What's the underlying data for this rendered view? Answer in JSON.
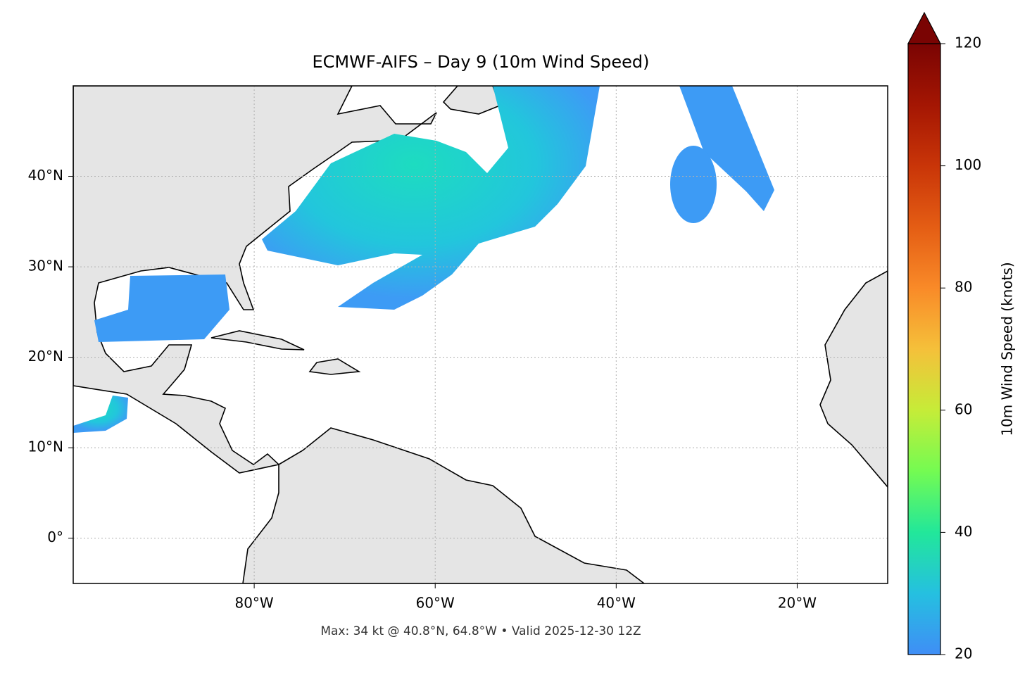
{
  "chart_data": {
    "type": "map",
    "title": "ECMWF-AIFS – Day 9 (10m Wind Speed)",
    "footnote": "Max: 34 kt @ 40.8°N, 64.8°W • Valid 2025-12-30 12Z",
    "xlim": [
      -100,
      -10
    ],
    "ylim": [
      -5,
      50
    ],
    "xticks": [
      {
        "value": -80,
        "label": "80°W"
      },
      {
        "value": -60,
        "label": "60°W"
      },
      {
        "value": -40,
        "label": "40°W"
      },
      {
        "value": -20,
        "label": "20°W"
      }
    ],
    "yticks": [
      {
        "value": 0,
        "label": "0°"
      },
      {
        "value": 10,
        "label": "10°N"
      },
      {
        "value": 20,
        "label": "20°N"
      },
      {
        "value": 30,
        "label": "30°N"
      },
      {
        "value": 40,
        "label": "40°N"
      }
    ],
    "grid": true,
    "colorbar": {
      "label": "10m Wind Speed (knots)",
      "lim": [
        20,
        120
      ],
      "ticks": [
        20,
        40,
        60,
        80,
        100,
        120
      ]
    }
  }
}
